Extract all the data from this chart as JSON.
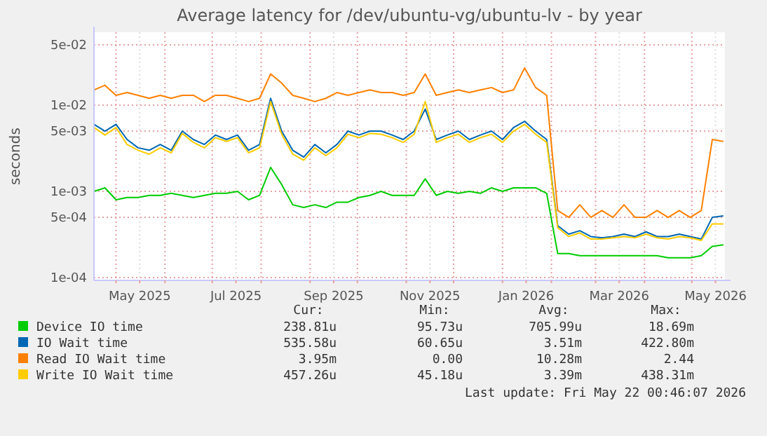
{
  "chart_data": {
    "type": "line",
    "title": "Average latency for /dev/ubuntu-vg/ubuntu-lv - by year",
    "ylabel": "seconds",
    "log": "y",
    "grid": true,
    "legend": "bottom",
    "line_style": "solid",
    "x": [
      "2025-04-17",
      "2025-04-24",
      "2025-05-01",
      "2025-05-08",
      "2025-05-15",
      "2025-05-22",
      "2025-05-29",
      "2025-06-05",
      "2025-06-12",
      "2025-06-19",
      "2025-06-26",
      "2025-07-03",
      "2025-07-10",
      "2025-07-17",
      "2025-07-24",
      "2025-07-31",
      "2025-08-07",
      "2025-08-14",
      "2025-08-21",
      "2025-08-28",
      "2025-09-04",
      "2025-09-11",
      "2025-09-18",
      "2025-09-25",
      "2025-10-02",
      "2025-10-09",
      "2025-10-16",
      "2025-10-23",
      "2025-10-30",
      "2025-11-06",
      "2025-11-13",
      "2025-11-20",
      "2025-11-27",
      "2025-12-04",
      "2025-12-11",
      "2025-12-18",
      "2025-12-25",
      "2026-01-01",
      "2026-01-08",
      "2026-01-15",
      "2026-01-22",
      "2026-01-29",
      "2026-02-05",
      "2026-02-12",
      "2026-02-19",
      "2026-02-26",
      "2026-03-05",
      "2026-03-12",
      "2026-03-19",
      "2026-03-26",
      "2026-04-02",
      "2026-04-09",
      "2026-04-16",
      "2026-04-23",
      "2026-04-30",
      "2026-05-07",
      "2026-05-14",
      "2026-05-21"
    ],
    "xlim": [
      "2025-04-17",
      "2026-05-22"
    ],
    "xticks": [
      {
        "value": "2025-05-01",
        "label": null
      },
      {
        "value": "2025-05-16",
        "label": "May 2025"
      },
      {
        "value": "2025-06-01",
        "label": null
      },
      {
        "value": "2025-07-01",
        "label": null
      },
      {
        "value": "2025-07-16",
        "label": "Jul 2025"
      },
      {
        "value": "2025-08-01",
        "label": null
      },
      {
        "value": "2025-09-01",
        "label": null
      },
      {
        "value": "2025-09-16",
        "label": "Sep 2025"
      },
      {
        "value": "2025-10-01",
        "label": null
      },
      {
        "value": "2025-11-01",
        "label": null
      },
      {
        "value": "2025-11-16",
        "label": "Nov 2025"
      },
      {
        "value": "2025-12-01",
        "label": null
      },
      {
        "value": "2026-01-01",
        "label": null
      },
      {
        "value": "2026-01-16",
        "label": "Jan 2026"
      },
      {
        "value": "2026-02-01",
        "label": null
      },
      {
        "value": "2026-03-01",
        "label": null
      },
      {
        "value": "2026-03-16",
        "label": "Mar 2026"
      },
      {
        "value": "2026-04-01",
        "label": null
      },
      {
        "value": "2026-05-01",
        "label": null
      },
      {
        "value": "2026-05-16",
        "label": "May 2026"
      }
    ],
    "ylim": [
      9.3e-05,
      0.07
    ],
    "yticks": [
      {
        "value": 0.0001,
        "label": "1e-04"
      },
      {
        "value": 0.0005,
        "label": "5e-04"
      },
      {
        "value": 0.001,
        "label": "1e-03"
      },
      {
        "value": 0.005,
        "label": "5e-03"
      },
      {
        "value": 0.01,
        "label": "1e-02"
      },
      {
        "value": 0.05,
        "label": "5e-02"
      }
    ],
    "series": [
      {
        "name": "Device IO time",
        "color": "#00cc00",
        "values": [
          0.001,
          0.0011,
          0.0008,
          0.00085,
          0.00085,
          0.0009,
          0.0009,
          0.00095,
          0.0009,
          0.00085,
          0.0009,
          0.00095,
          0.00095,
          0.001,
          0.0008,
          0.0009,
          0.0019,
          0.0012,
          0.0007,
          0.00065,
          0.0007,
          0.00065,
          0.00075,
          0.00075,
          0.00085,
          0.0009,
          0.001,
          0.0009,
          0.0009,
          0.0009,
          0.0014,
          0.0009,
          0.001,
          0.00095,
          0.001,
          0.00095,
          0.0011,
          0.001,
          0.0011,
          0.0011,
          0.0011,
          0.00095,
          0.00019,
          0.00019,
          0.00018,
          0.00018,
          0.00018,
          0.00018,
          0.00018,
          0.00018,
          0.00018,
          0.00018,
          0.00017,
          0.00017,
          0.00017,
          0.00018,
          0.00023,
          0.00024
        ]
      },
      {
        "name": "IO Wait time",
        "color": "#0066b3",
        "values": [
          0.006,
          0.005,
          0.006,
          0.004,
          0.0032,
          0.003,
          0.0035,
          0.003,
          0.005,
          0.004,
          0.0035,
          0.0045,
          0.004,
          0.0045,
          0.003,
          0.0035,
          0.012,
          0.005,
          0.003,
          0.0025,
          0.0035,
          0.0028,
          0.0035,
          0.005,
          0.0045,
          0.005,
          0.005,
          0.0045,
          0.004,
          0.005,
          0.009,
          0.004,
          0.0045,
          0.005,
          0.004,
          0.0045,
          0.005,
          0.004,
          0.0055,
          0.0065,
          0.005,
          0.004,
          0.0004,
          0.00032,
          0.00035,
          0.0003,
          0.00029,
          0.0003,
          0.00032,
          0.0003,
          0.00034,
          0.0003,
          0.0003,
          0.00032,
          0.0003,
          0.00028,
          0.0005,
          0.00052
        ]
      },
      {
        "name": "Read IO Wait time",
        "color": "#ff8000",
        "values": [
          0.015,
          0.017,
          0.013,
          0.014,
          0.013,
          0.012,
          0.013,
          0.012,
          0.013,
          0.013,
          0.011,
          0.013,
          0.013,
          0.012,
          0.011,
          0.012,
          0.023,
          0.018,
          0.013,
          0.012,
          0.011,
          0.012,
          0.014,
          0.013,
          0.014,
          0.015,
          0.014,
          0.014,
          0.013,
          0.014,
          0.023,
          0.013,
          0.014,
          0.015,
          0.014,
          0.015,
          0.016,
          0.014,
          0.015,
          0.027,
          0.016,
          0.013,
          0.0006,
          0.0005,
          0.0007,
          0.0005,
          0.0006,
          0.0005,
          0.0007,
          0.0005,
          0.0005,
          0.0006,
          0.0005,
          0.0006,
          0.0005,
          0.0006,
          0.004,
          0.0038
        ]
      },
      {
        "name": "Write IO Wait time",
        "color": "#ffcc00",
        "values": [
          0.0055,
          0.0045,
          0.0055,
          0.0035,
          0.003,
          0.0027,
          0.0032,
          0.0028,
          0.0047,
          0.0037,
          0.0032,
          0.0042,
          0.0038,
          0.0042,
          0.0028,
          0.0032,
          0.011,
          0.0046,
          0.0027,
          0.0023,
          0.0032,
          0.0026,
          0.0032,
          0.0046,
          0.0042,
          0.0047,
          0.0046,
          0.0042,
          0.0037,
          0.0046,
          0.011,
          0.0037,
          0.0042,
          0.0046,
          0.0037,
          0.0042,
          0.0046,
          0.0037,
          0.005,
          0.006,
          0.0046,
          0.0037,
          0.00038,
          0.0003,
          0.00033,
          0.00028,
          0.00028,
          0.00029,
          0.0003,
          0.00029,
          0.00032,
          0.00029,
          0.00028,
          0.0003,
          0.00029,
          0.00027,
          0.00042,
          0.00042
        ]
      }
    ],
    "annotations": [
      "Cur:",
      "Min:",
      "Avg:",
      "Max:",
      "238.81u",
      "95.73u",
      "705.99u",
      "18.69m",
      "535.58u",
      "60.65u",
      "3.51m",
      "422.80m",
      "3.95m",
      "0.00",
      "10.28m",
      "2.44",
      "457.26u",
      "45.18u",
      "3.39m",
      "438.31m",
      "Last update: Fri May 22 00:46:07 2026"
    ]
  }
}
